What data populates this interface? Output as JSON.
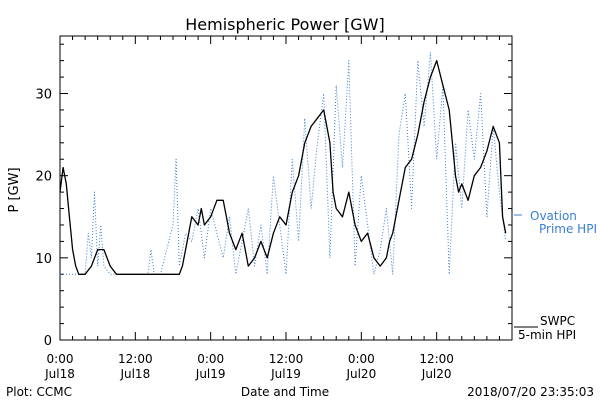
{
  "chart_data": {
    "type": "line",
    "title": "Hemispheric Power [GW]",
    "ylabel": "P [GW]",
    "xlabel": "Date and Time",
    "ylim": [
      0,
      37
    ],
    "xlim_hours": [
      0,
      72
    ],
    "x_ticks": [
      {
        "hour": 0,
        "time": "0:00",
        "date": "Jul18"
      },
      {
        "hour": 12,
        "time": "12:00",
        "date": "Jul18"
      },
      {
        "hour": 24,
        "time": "0:00",
        "date": "Jul19"
      },
      {
        "hour": 36,
        "time": "12:00",
        "date": "Jul19"
      },
      {
        "hour": 48,
        "time": "0:00",
        "date": "Jul20"
      },
      {
        "hour": 60,
        "time": "12:00",
        "date": "Jul20"
      }
    ],
    "y_ticks": [
      0,
      10,
      20,
      30
    ],
    "series": [
      {
        "name": "SWPC 5-min HPI",
        "legend_line1": "SWPC",
        "legend_line2": "5-min HPI",
        "color": "#000000",
        "style": "solid",
        "points": [
          [
            0,
            18
          ],
          [
            0.5,
            21
          ],
          [
            1,
            19
          ],
          [
            1.5,
            15
          ],
          [
            2,
            11
          ],
          [
            2.5,
            9
          ],
          [
            3,
            8
          ],
          [
            4,
            8
          ],
          [
            5,
            9
          ],
          [
            6,
            11
          ],
          [
            7,
            11
          ],
          [
            8,
            9
          ],
          [
            9,
            8
          ],
          [
            12,
            8
          ],
          [
            16,
            8
          ],
          [
            19,
            8
          ],
          [
            19.5,
            9
          ],
          [
            20,
            11
          ],
          [
            20.5,
            13
          ],
          [
            21,
            15
          ],
          [
            22,
            14
          ],
          [
            22.5,
            16
          ],
          [
            23,
            14
          ],
          [
            24,
            15
          ],
          [
            25,
            17
          ],
          [
            26,
            17
          ],
          [
            26.5,
            15
          ],
          [
            27,
            13
          ],
          [
            28,
            11
          ],
          [
            29,
            13
          ],
          [
            29.5,
            11
          ],
          [
            30,
            9
          ],
          [
            31,
            10
          ],
          [
            32,
            12
          ],
          [
            33,
            10
          ],
          [
            34,
            13
          ],
          [
            35,
            15
          ],
          [
            36,
            14
          ],
          [
            37,
            18
          ],
          [
            38,
            20
          ],
          [
            39,
            24
          ],
          [
            40,
            26
          ],
          [
            41,
            27
          ],
          [
            42,
            28
          ],
          [
            43,
            24
          ],
          [
            43.5,
            18
          ],
          [
            44,
            16
          ],
          [
            45,
            15
          ],
          [
            46,
            18
          ],
          [
            47,
            14
          ],
          [
            48,
            12
          ],
          [
            49,
            13
          ],
          [
            50,
            10
          ],
          [
            51,
            9
          ],
          [
            52,
            10
          ],
          [
            52.5,
            12
          ],
          [
            53,
            13
          ],
          [
            54,
            17
          ],
          [
            55,
            21
          ],
          [
            56,
            22
          ],
          [
            57,
            25
          ],
          [
            58,
            29
          ],
          [
            59,
            32
          ],
          [
            60,
            34
          ],
          [
            61,
            31
          ],
          [
            62,
            28
          ],
          [
            62.5,
            24
          ],
          [
            63,
            20
          ],
          [
            63.5,
            18
          ],
          [
            64,
            19
          ],
          [
            65,
            17
          ],
          [
            66,
            20
          ],
          [
            67,
            21
          ],
          [
            68,
            23
          ],
          [
            69,
            26
          ],
          [
            70,
            24
          ],
          [
            70.5,
            15
          ],
          [
            71,
            13
          ]
        ]
      },
      {
        "name": "Ovation Prime HPI",
        "legend_line1": "Ovation",
        "legend_line2": "Prime HPI",
        "color": "#3a7fd5",
        "style": "dotted",
        "points": [
          [
            0,
            8
          ],
          [
            4,
            8
          ],
          [
            4.5,
            13
          ],
          [
            5,
            10
          ],
          [
            5.5,
            18
          ],
          [
            6,
            9
          ],
          [
            6.5,
            14
          ],
          [
            7,
            9
          ],
          [
            8,
            8
          ],
          [
            14,
            8
          ],
          [
            14.5,
            11
          ],
          [
            15,
            8
          ],
          [
            16,
            8
          ],
          [
            17,
            11
          ],
          [
            18,
            14
          ],
          [
            18.5,
            22
          ],
          [
            19,
            9
          ],
          [
            20,
            13
          ],
          [
            21,
            12
          ],
          [
            22,
            16
          ],
          [
            23,
            10
          ],
          [
            24,
            16
          ],
          [
            25,
            13
          ],
          [
            26,
            10
          ],
          [
            27,
            15
          ],
          [
            28,
            8
          ],
          [
            29,
            12
          ],
          [
            30,
            16
          ],
          [
            31,
            9
          ],
          [
            32,
            14
          ],
          [
            33,
            8
          ],
          [
            34,
            20
          ],
          [
            35,
            14
          ],
          [
            36,
            8
          ],
          [
            37,
            22
          ],
          [
            38,
            12
          ],
          [
            39,
            27
          ],
          [
            40,
            16
          ],
          [
            41,
            24
          ],
          [
            42,
            30
          ],
          [
            43,
            10
          ],
          [
            44,
            31
          ],
          [
            45,
            21
          ],
          [
            46,
            34
          ],
          [
            47,
            9
          ],
          [
            48,
            20
          ],
          [
            49,
            14
          ],
          [
            50,
            8
          ],
          [
            51,
            11
          ],
          [
            52,
            16
          ],
          [
            53,
            8
          ],
          [
            54,
            25
          ],
          [
            55,
            30
          ],
          [
            56,
            16
          ],
          [
            57,
            34
          ],
          [
            58,
            26
          ],
          [
            59,
            35
          ],
          [
            60,
            22
          ],
          [
            61,
            31
          ],
          [
            62,
            8
          ],
          [
            63,
            24
          ],
          [
            64,
            16
          ],
          [
            65,
            28
          ],
          [
            66,
            22
          ],
          [
            67,
            30
          ],
          [
            68,
            15
          ],
          [
            69,
            26
          ],
          [
            70,
            18
          ],
          [
            71,
            12
          ]
        ]
      }
    ],
    "footer_left": "Plot: CCMC",
    "footer_right": "2018/07/20 23:35:03",
    "legend_placement": "right",
    "grid": false
  }
}
